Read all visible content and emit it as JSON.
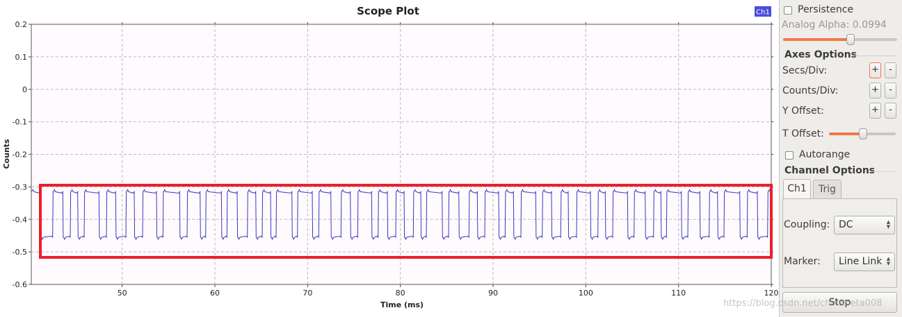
{
  "plot": {
    "title": "Scope Plot",
    "xlabel": "Time (ms)",
    "ylabel": "Counts",
    "legend": "Ch1"
  },
  "chart_data": {
    "type": "line",
    "title": "Scope Plot",
    "xlabel": "Time (ms)",
    "ylabel": "Counts",
    "xlim": [
      40.2,
      120
    ],
    "ylim": [
      -0.6,
      0.2
    ],
    "xticks": [
      50,
      60,
      70,
      80,
      90,
      100,
      110,
      120
    ],
    "xtick_labels": [
      "50",
      "60",
      "70",
      "80",
      "90",
      "100",
      "110",
      "120"
    ],
    "yticks": [
      0.2,
      0.1,
      0,
      -0.1,
      -0.2,
      -0.3,
      -0.4,
      -0.5,
      -0.6
    ],
    "ytick_labels": [
      "0.2",
      "0.1",
      "0",
      "-0.1",
      "-0.2",
      "-0.3",
      "-0.4",
      "-0.5",
      "-0.6"
    ],
    "grid": true,
    "legend_placement": "top-right",
    "series": [
      {
        "name": "Ch1",
        "color": "#3a3ab8",
        "levels": {
          "high": -0.315,
          "low": -0.455
        },
        "transitions": [
          40.2,
          41.2,
          42.5,
          43.6,
          44.4,
          45.2,
          45.9,
          47.5,
          48.3,
          49.3,
          50.4,
          51.3,
          52.2,
          53.7,
          54.4,
          56.2,
          57.0,
          58.4,
          59.0,
          60.7,
          61.3,
          62.4,
          63.5,
          64.4,
          65.1,
          66.0,
          66.6,
          68.3,
          68.9,
          70.5,
          71.2,
          72.5,
          73.6,
          74.6,
          75.4,
          76.9,
          77.6,
          78.6,
          79.5,
          80.4,
          81.4,
          82.2,
          82.8,
          84.5,
          85.2,
          86.3,
          87.4,
          88.3,
          89.1,
          90.6,
          91.3,
          92.2,
          93.0,
          94.6,
          95.3,
          96.3,
          97.3,
          98.1,
          99.0,
          100.5,
          101.3,
          102.1,
          102.9,
          104.5,
          105.2,
          106.4,
          107.3,
          108.1,
          108.7,
          110.3,
          111.0,
          112.3,
          113.3,
          114.2,
          114.9,
          116.6,
          117.4,
          118.5,
          119.6
        ],
        "initial_level": "high"
      }
    ]
  },
  "annotation": {
    "color": "#e8202c"
  },
  "panel": {
    "persistence_label": "Persistence",
    "analog_alpha_label": "Analog Alpha: 0.0994",
    "analog_alpha_value": 0.0994,
    "analog_alpha_fraction": 0.59,
    "axes_options_title": "Axes Options",
    "secs_div_label": "Secs/Div:",
    "counts_div_label": "Counts/Div:",
    "y_offset_label": "Y Offset:",
    "t_offset_label": "T Offset:",
    "t_offset_fraction": 0.51,
    "plus": "+",
    "minus": "-",
    "autorange_label": "Autorange",
    "channel_options_title": "Channel Options",
    "tab_ch1": "Ch1",
    "tab_trig": "Trig",
    "coupling_label": "Coupling:",
    "coupling_value": "DC",
    "marker_label": "Marker:",
    "marker_value": "Line Link",
    "stop_label": "Stop"
  },
  "watermark": "https://blog.csdn.net/chinabeta008",
  "colors": {
    "accent": "#f07846",
    "legend_bg": "#4b4bdc",
    "grid": "#b8b8b8",
    "signal": "#3a3ab8"
  }
}
